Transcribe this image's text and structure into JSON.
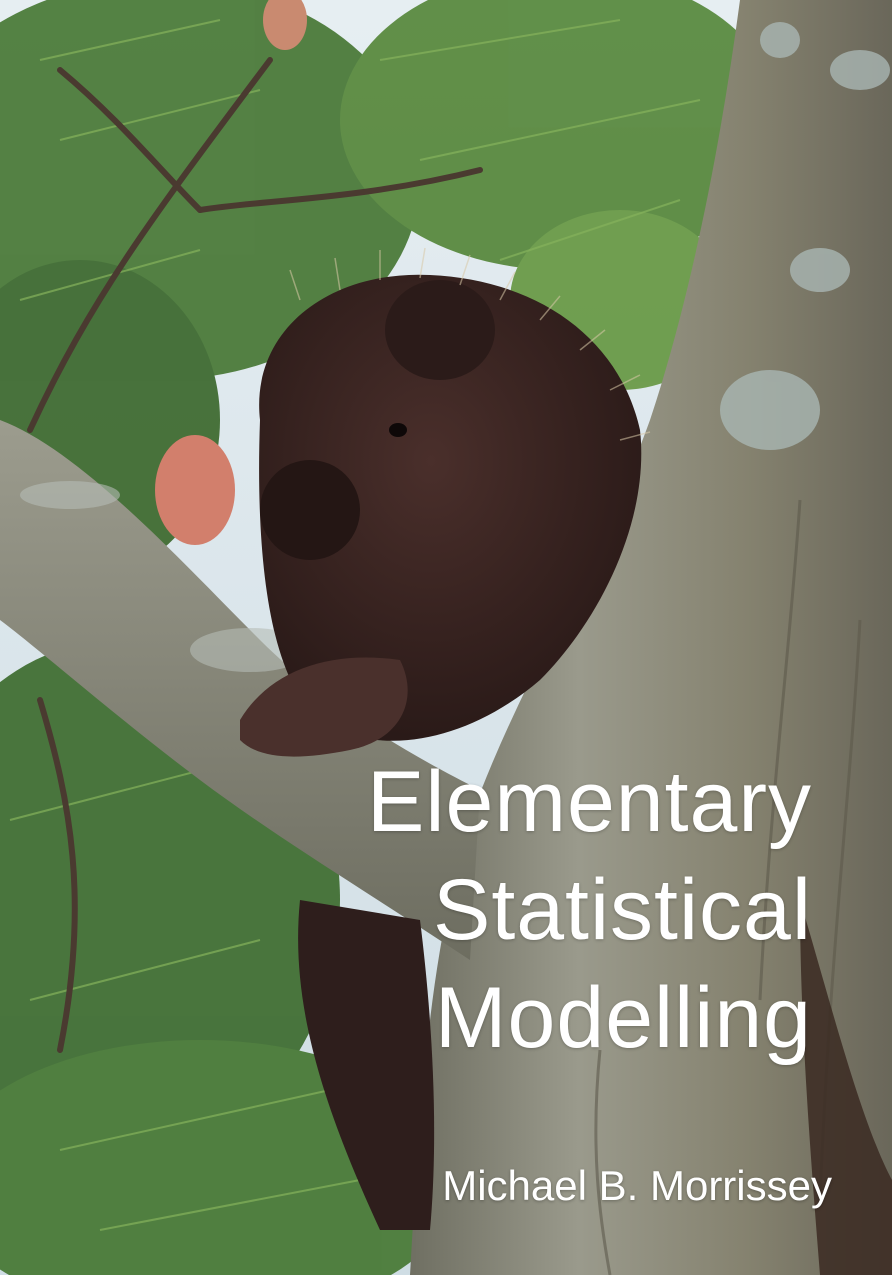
{
  "cover": {
    "title_lines": [
      "Elementary",
      "Statistical",
      "Modelling"
    ],
    "author": "Michael B. Morrissey"
  },
  "palette": {
    "sky": "#dfe8ee",
    "needles": "#4f7f3a",
    "bark": "#8a8a7e",
    "fur": "#3a2522",
    "text": "#ffffff"
  }
}
